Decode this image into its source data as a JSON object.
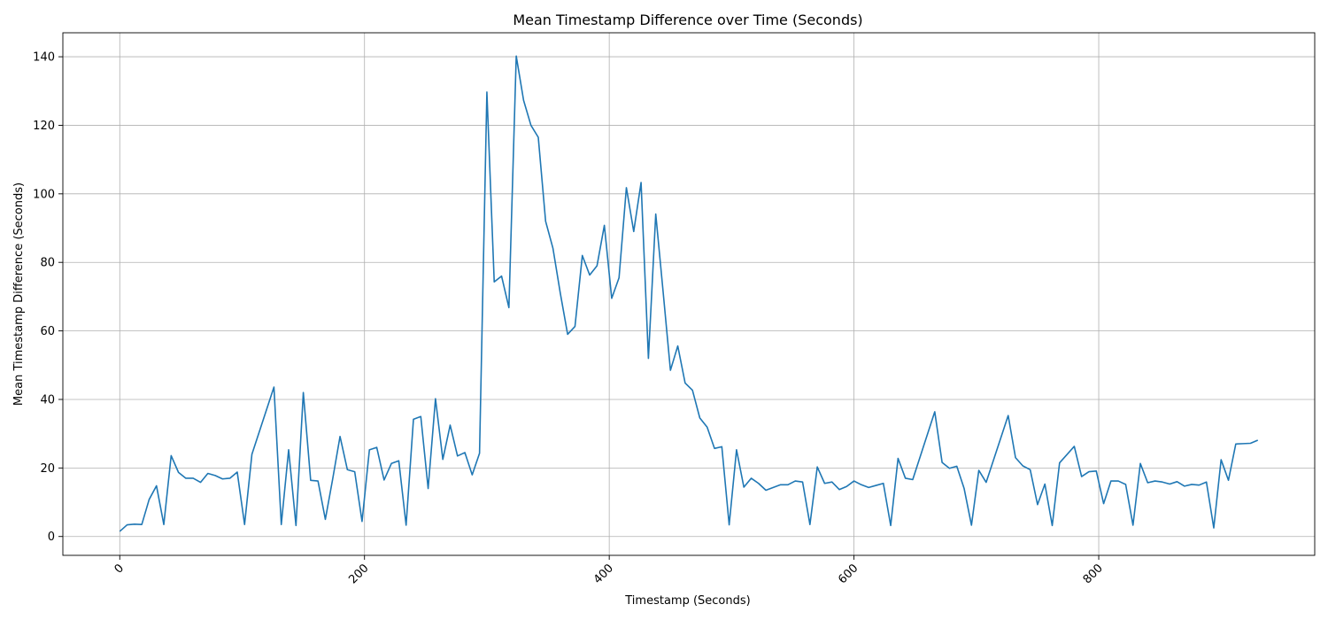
{
  "chart_data": {
    "type": "line",
    "title": "Mean Timestamp Difference over Time (Seconds)",
    "xlabel": "Timestamp (Seconds)",
    "ylabel": "Mean Timestamp Difference (Seconds)",
    "xlim": [
      -46.5,
      976.5
    ],
    "ylim": [
      -5.5,
      147
    ],
    "xticks": [
      0,
      200,
      400,
      600,
      800
    ],
    "yticks": [
      0,
      20,
      40,
      60,
      80,
      100,
      120,
      140
    ],
    "grid": true,
    "legend": "none",
    "series": [
      {
        "color": "#1f77b4",
        "x": [
          0,
          6,
          12,
          18,
          24,
          30,
          36,
          42,
          48,
          54,
          60,
          66,
          72,
          78,
          84,
          90,
          96,
          102,
          108,
          126,
          132,
          138,
          144,
          150,
          156,
          162,
          168,
          174,
          180,
          186,
          192,
          198,
          204,
          210,
          216,
          222,
          228,
          234,
          240,
          246,
          252,
          258,
          264,
          270,
          276,
          282,
          288,
          294,
          300,
          306,
          312,
          318,
          324,
          330,
          336,
          342,
          348,
          354,
          360,
          366,
          372,
          378,
          384,
          390,
          396,
          402,
          408,
          414,
          420,
          426,
          432,
          438,
          444,
          450,
          456,
          462,
          468,
          474,
          480,
          486,
          492,
          498,
          504,
          510,
          516,
          522,
          528,
          534,
          540,
          546,
          552,
          558,
          564,
          570,
          576,
          582,
          588,
          594,
          600,
          606,
          612,
          618,
          624,
          630,
          636,
          642,
          648,
          666,
          672,
          678,
          684,
          690,
          696,
          702,
          708,
          726,
          732,
          738,
          744,
          750,
          756,
          762,
          768,
          780,
          786,
          792,
          798,
          804,
          810,
          816,
          822,
          828,
          834,
          840,
          846,
          852,
          858,
          864,
          870,
          876,
          882,
          888,
          894,
          900,
          906,
          912,
          918,
          924,
          930
        ],
        "y": [
          1.5,
          3.4,
          3.6,
          3.5,
          10.8,
          14.8,
          3.5,
          23.6,
          18.7,
          17,
          17,
          15.8,
          18.4,
          17.8,
          16.8,
          17,
          18.8,
          3.5,
          24,
          43.6,
          3.5,
          25.3,
          3.2,
          42,
          16.4,
          16.2,
          5,
          16.8,
          29.2,
          19.5,
          18.9,
          4.4,
          25.3,
          26,
          16.5,
          21.3,
          22.1,
          3.3,
          34.2,
          35,
          14,
          40.2,
          22.5,
          32.5,
          23.5,
          24.5,
          18,
          24.3,
          129.7,
          74.3,
          76,
          66.8,
          140.2,
          127.3,
          120,
          116.5,
          92,
          84.1,
          71,
          59,
          61.3,
          82,
          76.3,
          79,
          90.8,
          69.5,
          75.5,
          101.8,
          89,
          103.3,
          52,
          94.1,
          71.5,
          48.5,
          55.6,
          44.8,
          42.7,
          34.6,
          31.9,
          25.7,
          26.2,
          3.4,
          25.3,
          14.4,
          17,
          15.5,
          13.5,
          14.3,
          15.1,
          15.1,
          16.2,
          15.9,
          3.5,
          20.3,
          15.5,
          15.9,
          13.7,
          14.6,
          16.2,
          15.1,
          14.3,
          14.9,
          15.5,
          3.2,
          22.8,
          17,
          16.6,
          36.4,
          21.6,
          19.9,
          20.5,
          14,
          3.3,
          19.3,
          15.8,
          35.3,
          23,
          20.6,
          19.5,
          9.3,
          15.3,
          3.2,
          21.5,
          26.3,
          17.5,
          18.9,
          19.1,
          9.6,
          16.2,
          16.2,
          15.2,
          3.3,
          21.3,
          15.7,
          16.2,
          15.9,
          15.3,
          16,
          14.7,
          15.2,
          15,
          15.9,
          2.5,
          22.4,
          16.4,
          27,
          27.1,
          27.2,
          28.1
        ]
      }
    ]
  }
}
